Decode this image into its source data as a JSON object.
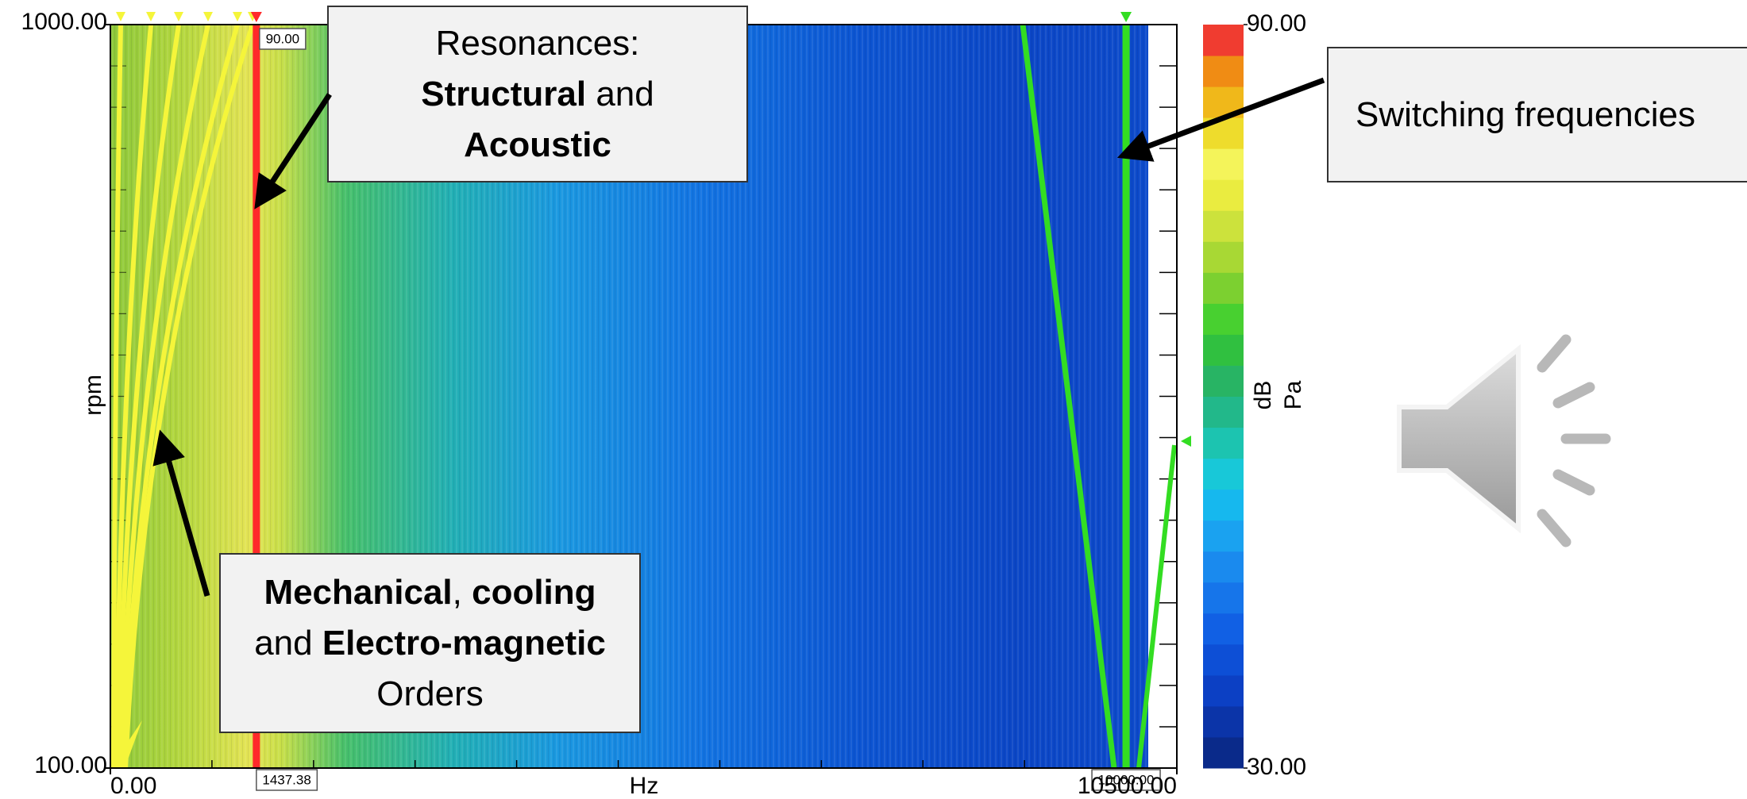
{
  "chart_data": {
    "type": "spectrogram",
    "x_label": "Hz",
    "y_label": "rpm",
    "xlim": [
      0,
      10500
    ],
    "xticks": [
      {
        "value": 0,
        "label": "0.00"
      },
      {
        "value": 10500,
        "label": "10500.00"
      }
    ],
    "ylim": [
      100,
      1000
    ],
    "yticks": [
      {
        "value": 100,
        "label": "100.00"
      },
      {
        "value": 1000,
        "label": "1000.00"
      }
    ],
    "colorbar": {
      "label_lines": [
        "dB",
        "Pa"
      ],
      "lim": [
        30,
        90
      ],
      "ticks": [
        {
          "value": 30,
          "label": "30.00"
        },
        {
          "value": 90,
          "label": "90.00"
        }
      ]
    },
    "cursors": [
      {
        "value": 1437.38,
        "label": "1437.38",
        "color": "#ff2a2a"
      },
      {
        "value": 10000,
        "label": "10000.00",
        "color": "#33dd22"
      }
    ],
    "readout": {
      "value": 90,
      "label": "90.00"
    },
    "annotations": [
      {
        "lines": [
          [
            {
              "text": "Resonances:",
              "bold": false
            }
          ],
          [
            {
              "text": "Structural",
              "bold": true
            },
            {
              "text": " and",
              "bold": false
            }
          ],
          [
            {
              "text": "Acoustic",
              "bold": true
            }
          ]
        ]
      },
      {
        "lines": [
          [
            {
              "text": "Mechanical",
              "bold": true
            },
            {
              "text": ", ",
              "bold": false
            },
            {
              "text": "cooling",
              "bold": true
            }
          ],
          [
            {
              "text": "and ",
              "bold": false
            },
            {
              "text": "Electro-magnetic",
              "bold": true
            }
          ],
          [
            {
              "text": "Orders",
              "bold": false
            }
          ]
        ]
      },
      {
        "lines": [
          [
            {
              "text": "Switching frequencies",
              "bold": false
            }
          ]
        ]
      }
    ]
  }
}
